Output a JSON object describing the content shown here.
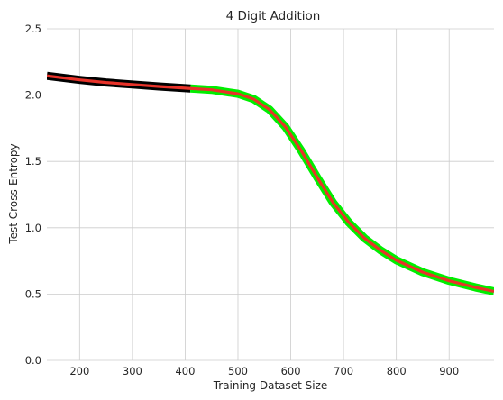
{
  "chart_data": {
    "type": "line",
    "title": "4 Digit Addition",
    "xlabel": "Training Dataset Size",
    "ylabel": "Test Cross-Entropy",
    "xlim": [
      138,
      985
    ],
    "ylim": [
      0.0,
      2.5
    ],
    "xticks": [
      200,
      300,
      400,
      500,
      600,
      700,
      800,
      900
    ],
    "yticks": [
      0.0,
      0.5,
      1.0,
      1.5,
      2.0,
      2.5
    ],
    "grid": true,
    "legend": "none",
    "colors": {
      "band_early": "#000000",
      "band_late": "#00ee00",
      "fit_line": "#e8332a",
      "grid": "#cccccc",
      "axes": "#262626"
    },
    "series": [
      {
        "role": "band-early",
        "x": [
          138,
          200,
          250,
          300,
          350,
          410
        ],
        "y": [
          2.145,
          2.115,
          2.095,
          2.08,
          2.065,
          2.05
        ]
      },
      {
        "role": "band-late",
        "x": [
          410,
          450,
          500,
          530,
          560,
          590,
          620,
          650,
          680,
          710,
          740,
          770,
          800,
          850,
          900,
          950,
          985
        ],
        "y": [
          2.05,
          2.04,
          2.01,
          1.97,
          1.89,
          1.76,
          1.58,
          1.38,
          1.19,
          1.04,
          0.92,
          0.83,
          0.755,
          0.665,
          0.6,
          0.55,
          0.52
        ]
      },
      {
        "role": "fit",
        "x": [
          138,
          200,
          250,
          300,
          350,
          410,
          450,
          500,
          530,
          560,
          590,
          620,
          650,
          680,
          710,
          740,
          770,
          800,
          850,
          900,
          950,
          985
        ],
        "y": [
          2.145,
          2.115,
          2.095,
          2.08,
          2.065,
          2.05,
          2.04,
          2.01,
          1.97,
          1.89,
          1.76,
          1.58,
          1.38,
          1.19,
          1.04,
          0.92,
          0.83,
          0.755,
          0.665,
          0.6,
          0.55,
          0.52
        ]
      }
    ]
  }
}
